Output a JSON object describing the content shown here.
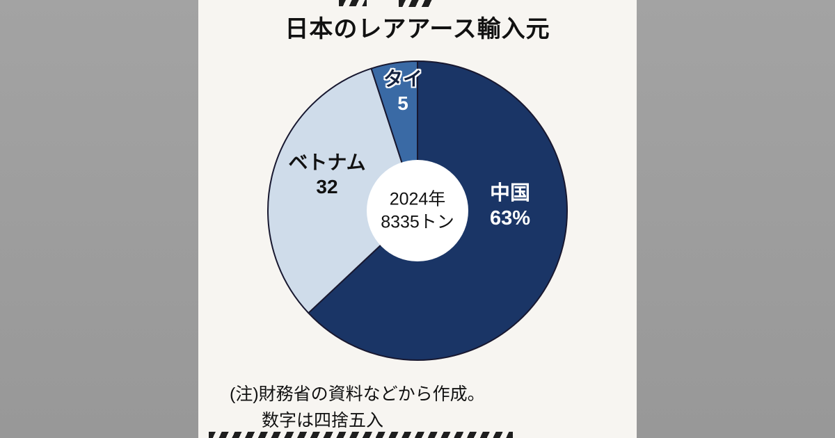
{
  "page": {
    "background_color": "#f7f5f1",
    "letterbox_color": "#9f9f9f"
  },
  "chart_data": {
    "type": "pie",
    "donut": true,
    "title": "日本のレアアース輸入元",
    "center_label": {
      "line1": "2024年",
      "line2": "8335トン"
    },
    "start_angle_deg": 0,
    "direction": "clockwise",
    "legend": "none",
    "unit": "%",
    "slices": [
      {
        "label": "中国",
        "value": 63,
        "display_value": "63%",
        "color": "#1a3566",
        "label_color": "#ffffff",
        "value_color": "#ffffff"
      },
      {
        "label": "ベトナム",
        "value": 32,
        "display_value": "32",
        "color": "#cfdcea",
        "label_color": "#111111",
        "value_color": "#111111"
      },
      {
        "label": "タイ",
        "value": 5,
        "display_value": "5",
        "color": "#3a6aa5",
        "label_color": "#13213f",
        "value_color": "#ffffff"
      }
    ],
    "outline_color": "#181830",
    "hole_color": "#ffffff"
  },
  "note": {
    "line1": "(注)財務省の資料などから作成。",
    "line2": "数字は四捨五入"
  }
}
